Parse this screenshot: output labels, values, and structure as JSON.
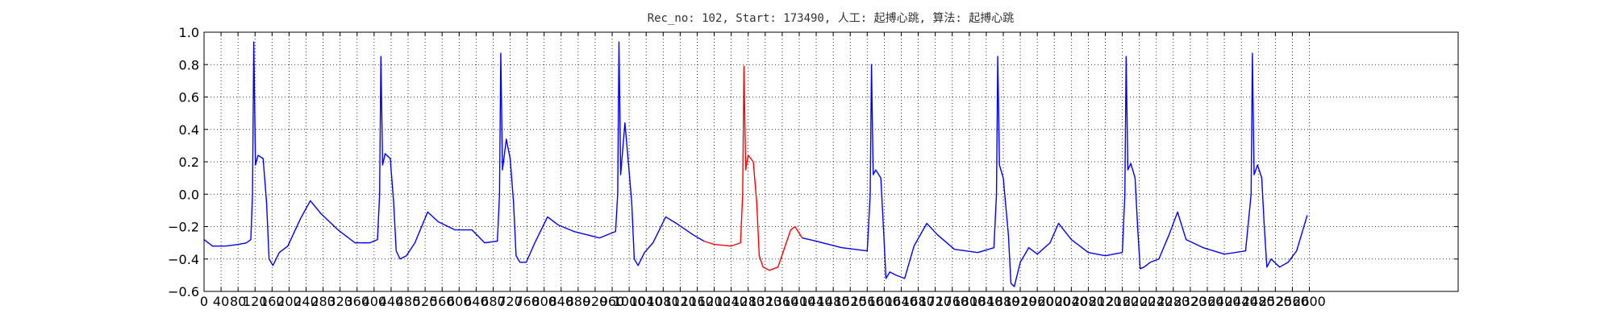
{
  "chart_data": {
    "type": "line",
    "title": "Rec_no: 102, Start: 173490, 人工: 起搏心跳, 算法: 起搏心跳",
    "xlim": [
      0,
      2950
    ],
    "ylim": [
      -0.6,
      1.0
    ],
    "grid": true,
    "xticks": [
      0,
      40,
      80,
      120,
      160,
      200,
      240,
      280,
      320,
      360,
      400,
      440,
      480,
      520,
      560,
      600,
      640,
      680,
      720,
      760,
      800,
      840,
      880,
      920,
      960,
      1000,
      1040,
      1080,
      1120,
      1160,
      1200,
      1240,
      1280,
      1320,
      1360,
      1400,
      1440,
      1480,
      1520,
      1560,
      1600,
      1640,
      1680,
      1720,
      1760,
      1800,
      1840,
      1880,
      1920,
      1960,
      2000,
      2040,
      2080,
      2120,
      2160,
      2200,
      2240,
      2280,
      2320,
      2360,
      2400,
      2440,
      2480,
      2520,
      2560,
      2600
    ],
    "yticks": [
      {
        "value": -0.6,
        "label": "−0.6"
      },
      {
        "value": -0.4,
        "label": "−0.4"
      },
      {
        "value": -0.2,
        "label": "−0.2"
      },
      {
        "value": 0,
        "label": "0.0"
      },
      {
        "value": 0.2,
        "label": "0.2"
      },
      {
        "value": 0.4,
        "label": "0.4"
      },
      {
        "value": 0.6,
        "label": "0.6"
      },
      {
        "value": 0.8,
        "label": "0.8"
      },
      {
        "value": 1.0,
        "label": "1.0"
      }
    ],
    "series": [
      {
        "color": "#0000ff",
        "x": [
          0,
          20,
          50,
          80,
          100,
          110,
          114,
          117,
          121,
          127,
          139,
          147,
          153,
          162,
          177,
          197,
          227,
          250,
          275,
          315,
          355,
          390,
          408,
          413,
          416,
          420,
          426,
          438,
          446,
          452,
          461,
          476,
          496,
          526,
          551,
          590,
          630,
          660,
          690,
          695,
          698,
          702,
          711,
          720,
          728,
          734,
          743,
          758,
          778,
          808,
          833,
          870,
          930,
          968,
          973,
          976,
          980,
          990,
          998,
          1006,
          1012,
          1021,
          1036,
          1056,
          1086,
          1111,
          1150,
          1176
        ],
        "values": [
          -0.28,
          -0.32,
          -0.32,
          -0.31,
          -0.3,
          -0.28,
          0.0,
          0.94,
          0.18,
          0.24,
          0.22,
          -0.05,
          -0.4,
          -0.44,
          -0.36,
          -0.32,
          -0.15,
          -0.04,
          -0.12,
          -0.22,
          -0.3,
          -0.3,
          -0.28,
          0.0,
          0.85,
          0.18,
          0.25,
          0.22,
          -0.05,
          -0.35,
          -0.4,
          -0.38,
          -0.3,
          -0.11,
          -0.17,
          -0.22,
          -0.22,
          -0.3,
          -0.29,
          0.0,
          0.87,
          0.15,
          0.34,
          0.22,
          -0.05,
          -0.38,
          -0.42,
          -0.42,
          -0.3,
          -0.14,
          -0.19,
          -0.23,
          -0.27,
          -0.23,
          0.0,
          0.94,
          0.12,
          0.44,
          0.2,
          -0.05,
          -0.4,
          -0.44,
          -0.36,
          -0.3,
          -0.14,
          -0.18,
          -0.25,
          -0.29
        ]
      },
      {
        "color": "#ff0000",
        "x": [
          1176,
          1200,
          1240,
          1262,
          1267,
          1270,
          1274,
          1280,
          1292,
          1300,
          1306,
          1315,
          1330,
          1350,
          1380,
          1390,
          1407
        ],
        "values": [
          -0.29,
          -0.31,
          -0.32,
          -0.3,
          0.0,
          0.79,
          0.15,
          0.24,
          0.2,
          -0.05,
          -0.38,
          -0.45,
          -0.47,
          -0.45,
          -0.22,
          -0.2,
          -0.27
        ]
      },
      {
        "color": "#0000ff",
        "x": [
          1407,
          1440,
          1500,
          1560,
          1567,
          1570,
          1574,
          1580,
          1592,
          1598,
          1604,
          1613,
          1628,
          1648,
          1670,
          1700,
          1725,
          1765,
          1820,
          1858,
          1864,
          1867,
          1871,
          1880,
          1892,
          1898,
          1906,
          1920,
          1940,
          1960,
          1990,
          2010,
          2040,
          2080,
          2120,
          2160,
          2166,
          2169,
          2173,
          2180,
          2190,
          2196,
          2202,
          2211,
          2226,
          2246,
          2270,
          2290,
          2310,
          2350,
          2400,
          2450,
          2463,
          2466,
          2470,
          2478,
          2488,
          2494,
          2500,
          2510,
          2530,
          2550,
          2570,
          2595
        ],
        "values": [
          -0.27,
          -0.29,
          -0.33,
          -0.35,
          0.0,
          0.8,
          0.12,
          0.15,
          0.1,
          -0.2,
          -0.52,
          -0.48,
          -0.5,
          -0.52,
          -0.32,
          -0.18,
          -0.25,
          -0.34,
          -0.36,
          -0.33,
          0.0,
          0.85,
          0.18,
          0.1,
          -0.25,
          -0.55,
          -0.57,
          -0.42,
          -0.33,
          -0.37,
          -0.3,
          -0.18,
          -0.28,
          -0.36,
          -0.38,
          -0.36,
          0.0,
          0.85,
          0.15,
          0.19,
          0.1,
          -0.2,
          -0.46,
          -0.45,
          -0.42,
          -0.4,
          -0.25,
          -0.11,
          -0.28,
          -0.33,
          -0.37,
          -0.35,
          0.0,
          0.87,
          0.12,
          0.18,
          0.1,
          -0.2,
          -0.45,
          -0.4,
          -0.45,
          -0.42,
          -0.35,
          -0.13
        ]
      }
    ]
  }
}
